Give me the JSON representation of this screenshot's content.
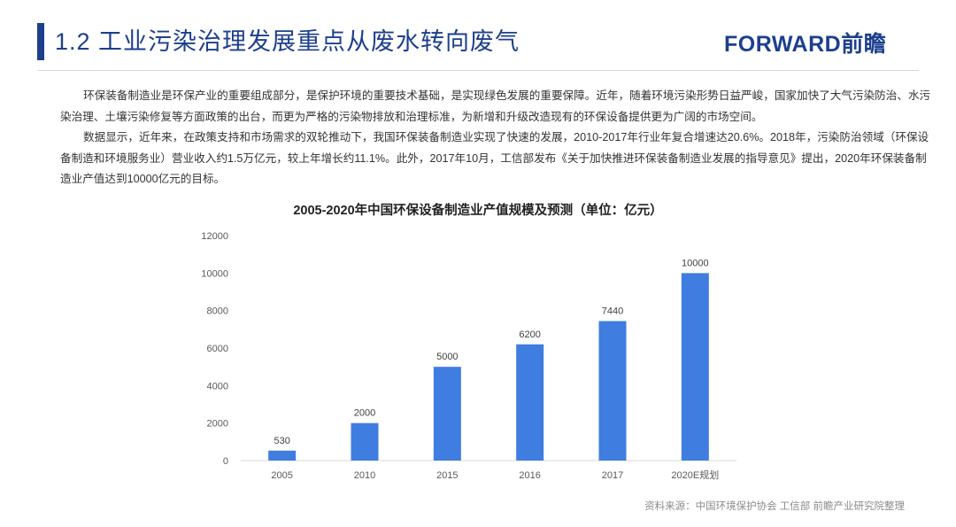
{
  "header": {
    "title": "1.2 工业污染治理发展重点从废水转向废气",
    "logo_text": "FORWARD前瞻"
  },
  "body": {
    "paragraphs": [
      "环保装备制造业是环保产业的重要组成部分，是保护环境的重要技术基础，是实现绿色发展的重要保障。近年，随着环境污染形势日益严峻，国家加快了大气污染防治、水污染治理、土壤污染修复等方面政策的出台，而更为严格的污染物排放和治理标准，为新增和升级改造现有的环保设备提供更为广阔的市场空间。",
      "数据显示，近年来，在政策支持和市场需求的双轮推动下，我国环保装备制造业实现了快速的发展，2010-2017年行业年复合增速达20.6%。2018年，污染防治领域（环保设备制造和环境服务业）营业收入约1.5万亿元，较上年增长约11.1%。此外，2017年10月，工信部发布《关于加快推进环保装备制造业发展的指导意见》提出，2020年环保装备制造业产值达到10000亿元的目标。"
    ]
  },
  "chart_data": {
    "type": "bar",
    "title": "2005-2020年中国环保设备制造业产值规模及预测（单位：亿元）",
    "categories": [
      "2005",
      "2010",
      "2015",
      "2016",
      "2017",
      "2020E规划"
    ],
    "values": [
      530,
      2000,
      5000,
      6200,
      7440,
      10000
    ],
    "data_labels": [
      "530",
      "2000",
      "5000",
      "6200",
      "7440",
      "10000"
    ],
    "ylim": [
      0,
      12000
    ],
    "yticks": [
      0,
      2000,
      4000,
      6000,
      8000,
      10000,
      12000
    ],
    "ytick_labels": [
      "0",
      "2000",
      "4000",
      "6000",
      "8000",
      "10000",
      "12000"
    ],
    "xlabel": "",
    "ylabel": "",
    "grid": false,
    "bar_color": "#3f7de0"
  },
  "source": "资料来源：中国环境保护协会 工信部 前瞻产业研究院整理",
  "colors": {
    "accent": "#1d3f8c",
    "bar": "#3f7de0"
  }
}
